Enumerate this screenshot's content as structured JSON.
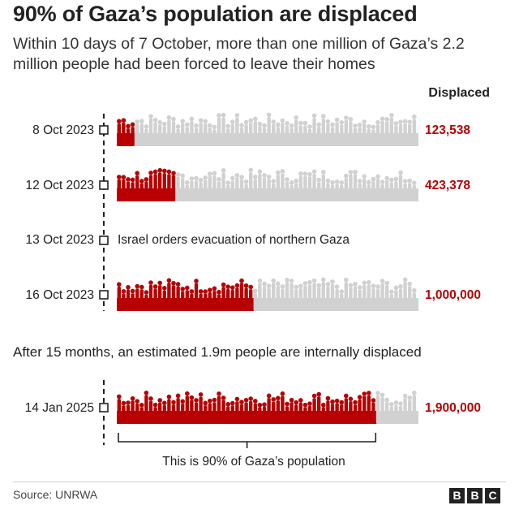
{
  "title": "90% of Gaza’s population are displaced",
  "subtitle": "Within 10 days of 7 October, more than one million of Gaza’s 2.2 million people had been forced to leave their homes",
  "column_header": "Displaced",
  "note": "After 15 months, an estimated 1.9m people are internally displaced",
  "bracket_label": "This is 90% of Gaza’s population",
  "source": "Source: UNRWA",
  "logo": [
    "B",
    "B",
    "C"
  ],
  "colors": {
    "displaced": "#b80000",
    "population": "#d1d1d1",
    "text": "#222222"
  },
  "chart_data": {
    "type": "bar",
    "title": "90% of Gaza’s population are displaced",
    "total_population": 2200000,
    "rows": [
      {
        "date": "8 Oct 2023",
        "displaced": 123538,
        "label": "123,538"
      },
      {
        "date": "12 Oct 2023",
        "displaced": 423378,
        "label": "423,378"
      },
      {
        "date": "13 Oct 2023",
        "event": "Israel orders evacuation of northern Gaza"
      },
      {
        "date": "16 Oct 2023",
        "displaced": 1000000,
        "label": "1,000,000"
      },
      {
        "date": "14 Jan 2025",
        "displaced": 1900000,
        "label": "1,900,000"
      }
    ]
  }
}
